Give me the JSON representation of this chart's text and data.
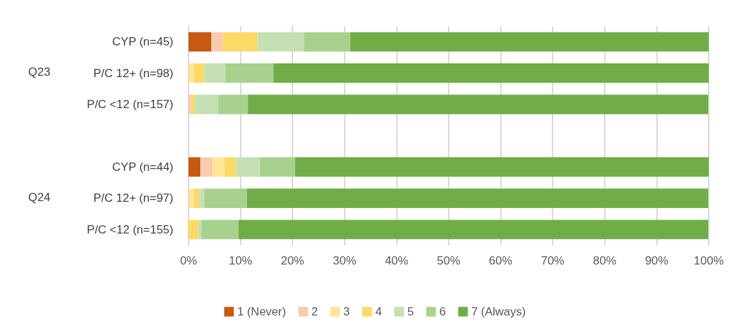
{
  "chart_data": {
    "type": "bar",
    "orientation": "horizontal",
    "stacked": true,
    "categories": [
      "CYP (n=45)",
      "P/C 12+ (n=98)",
      "P/C <12 (n=157)",
      null,
      "CYP (n=44)",
      "P/C 12+ (n=97)",
      "P/C <12 (n=155)"
    ],
    "series": [
      {
        "name": "1 (Never)",
        "color": "#c55a11",
        "values": [
          4.4,
          0,
          0,
          null,
          2.3,
          0,
          0
        ]
      },
      {
        "name": "2",
        "color": "#f8cbad",
        "values": [
          2.2,
          0,
          0.6,
          null,
          2.3,
          0,
          0
        ]
      },
      {
        "name": "3",
        "color": "#ffe699",
        "values": [
          0,
          1.0,
          0,
          null,
          2.3,
          1.0,
          0
        ]
      },
      {
        "name": "4",
        "color": "#ffd966",
        "values": [
          6.7,
          2.0,
          0.6,
          null,
          2.3,
          1.0,
          1.9
        ]
      },
      {
        "name": "5",
        "color": "#c5e0b4",
        "values": [
          8.9,
          4.1,
          4.5,
          null,
          4.5,
          1.0,
          0.6
        ]
      },
      {
        "name": "6",
        "color": "#a9d18e",
        "values": [
          8.9,
          9.2,
          5.7,
          null,
          6.8,
          8.2,
          7.1
        ]
      },
      {
        "name": "7 (Always)",
        "color": "#70ad47",
        "values": [
          68.9,
          83.7,
          88.5,
          null,
          79.5,
          88.7,
          90.3
        ]
      }
    ],
    "xlim": [
      0,
      100
    ],
    "xticks": [
      {
        "value": 0,
        "label": "0%"
      },
      {
        "value": 10,
        "label": "10%"
      },
      {
        "value": 20,
        "label": "20%"
      },
      {
        "value": 30,
        "label": "30%"
      },
      {
        "value": 40,
        "label": "40%"
      },
      {
        "value": 50,
        "label": "50%"
      },
      {
        "value": 60,
        "label": "60%"
      },
      {
        "value": 70,
        "label": "70%"
      },
      {
        "value": 80,
        "label": "80%"
      },
      {
        "value": 90,
        "label": "90%"
      },
      {
        "value": 100,
        "label": "100%"
      }
    ],
    "grid": "x",
    "legend": "bottom",
    "annotations": [
      "Q23",
      "Q24"
    ]
  }
}
